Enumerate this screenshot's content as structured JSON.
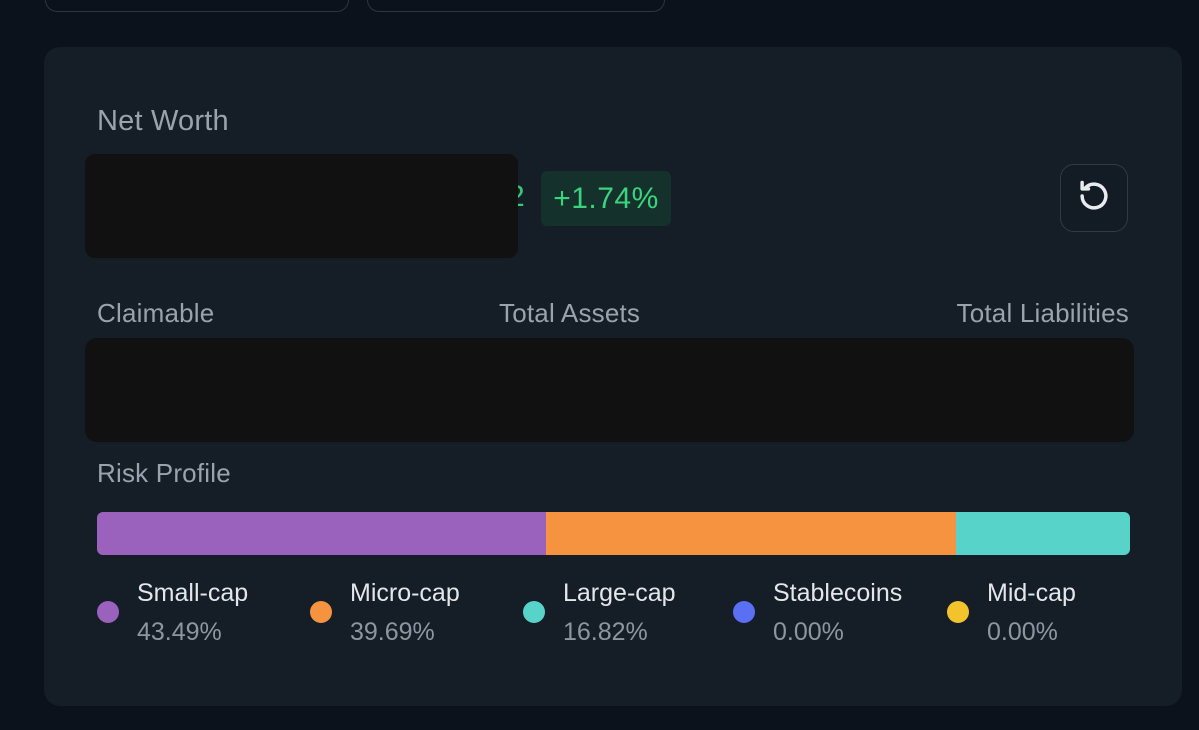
{
  "card": {
    "net_worth_label": "Net Worth",
    "net_worth_value_visible": "2",
    "change_pct": "+1.74%",
    "refresh_icon": "refresh-icon",
    "stats_labels": {
      "claimable": "Claimable",
      "total_assets": "Total Assets",
      "total_liabilities": "Total Liabilities"
    },
    "risk_profile_label": "Risk Profile"
  },
  "risk_profile": {
    "segments": [
      {
        "name": "Small-cap",
        "percent_label": "43.49%",
        "value": 43.49,
        "color": "#9a61bd"
      },
      {
        "name": "Micro-cap",
        "percent_label": "39.69%",
        "value": 39.69,
        "color": "#f59340"
      },
      {
        "name": "Large-cap",
        "percent_label": "16.82%",
        "value": 16.82,
        "color": "#58d3c9"
      },
      {
        "name": "Stablecoins",
        "percent_label": "0.00%",
        "value": 0.0,
        "color": "#5b6ff5"
      },
      {
        "name": "Mid-cap",
        "percent_label": "0.00%",
        "value": 0.0,
        "color": "#f3c32b"
      }
    ]
  },
  "colors": {
    "background": "#0b121c",
    "card": "#151d27",
    "positive": "#3bd37e",
    "positive_bg": "#14322b",
    "redaction": "#111111"
  }
}
